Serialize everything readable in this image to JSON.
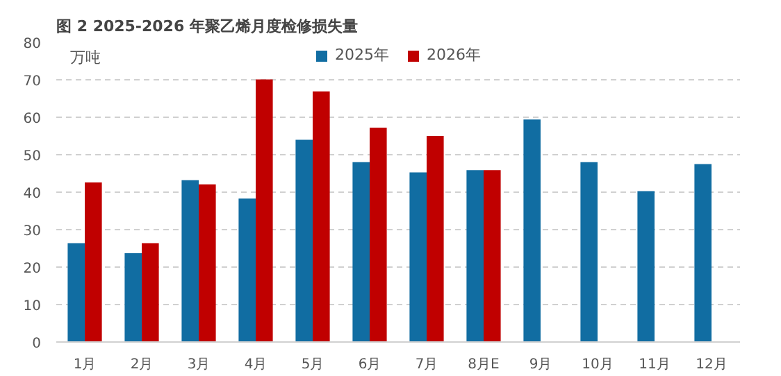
{
  "chart_data": {
    "type": "bar",
    "title": "图 2 2025-2026 年聚乙烯月度检修损失量",
    "ylabel": "万吨",
    "categories": [
      "1月",
      "2月",
      "3月",
      "4月",
      "5月",
      "6月",
      "7月",
      "8月E",
      "9月",
      "10月",
      "11月",
      "12月"
    ],
    "series": [
      {
        "name": "2025年",
        "color": "#116da2",
        "values": [
          26.4,
          23.7,
          43.2,
          38.3,
          54.0,
          48.0,
          45.3,
          45.9,
          59.4,
          48.0,
          40.3,
          47.5
        ]
      },
      {
        "name": "2026年",
        "color": "#c00000",
        "values": [
          42.6,
          26.4,
          42.1,
          70.1,
          66.9,
          57.2,
          55.0,
          45.9,
          null,
          null,
          null,
          null
        ]
      }
    ],
    "ylim": [
      0,
      80
    ],
    "yticks": [
      0,
      10,
      20,
      30,
      40,
      50,
      60,
      70,
      80
    ],
    "grid": "y",
    "legend": "top"
  }
}
